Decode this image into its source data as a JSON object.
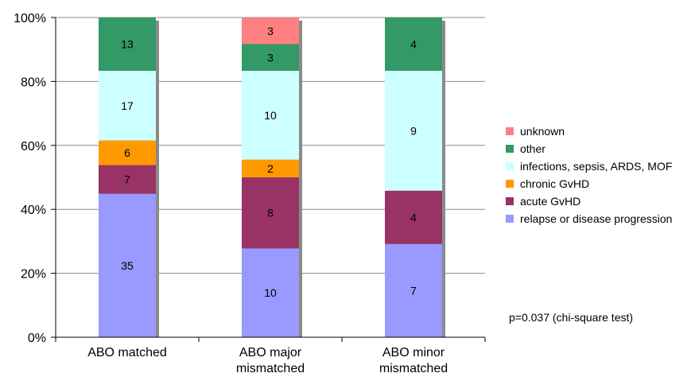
{
  "chart_data": {
    "type": "bar",
    "stacked": "percent",
    "categories": [
      [
        "ABO matched"
      ],
      [
        "ABO major",
        "mismatched"
      ],
      [
        "ABO minor",
        "mismatched"
      ]
    ],
    "series": [
      {
        "name": "relapse or disease progression",
        "color": "#9999ff",
        "values": [
          35,
          10,
          7
        ]
      },
      {
        "name": "acute GvHD",
        "color": "#993366",
        "values": [
          7,
          8,
          4
        ]
      },
      {
        "name": "chronic GvHD",
        "color": "#ff9900",
        "values": [
          6,
          2,
          0
        ]
      },
      {
        "name": "infections, sepsis, ARDS, MOF",
        "color": "#ccffff",
        "values": [
          17,
          10,
          9
        ]
      },
      {
        "name": "other",
        "color": "#339966",
        "values": [
          13,
          3,
          4
        ]
      },
      {
        "name": "unknown",
        "color": "#ff8080",
        "values": [
          0,
          3,
          0
        ]
      }
    ],
    "ylim": [
      0,
      100
    ],
    "yticks": [
      "0%",
      "20%",
      "40%",
      "60%",
      "80%",
      "100%"
    ],
    "grid": true,
    "legend": "right",
    "annotation": "p=0.037 (chi-square test)"
  }
}
